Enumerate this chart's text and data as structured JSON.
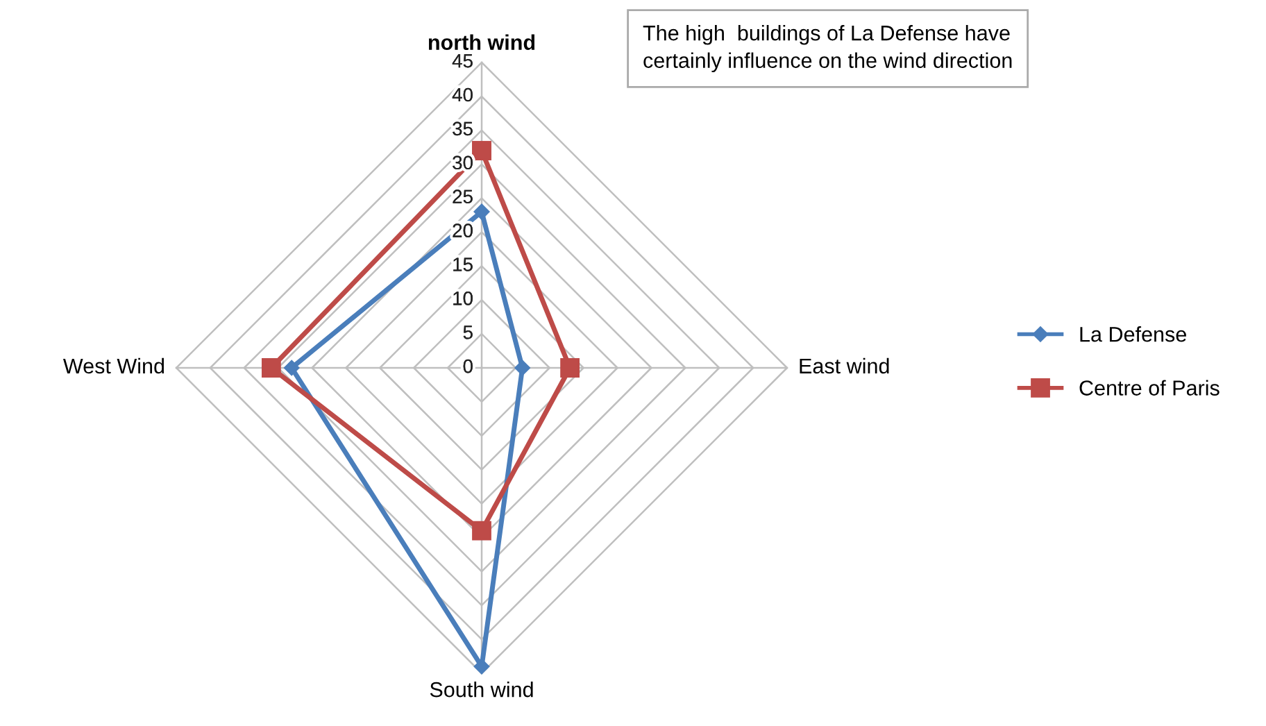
{
  "chart_data": {
    "type": "radar",
    "categories": [
      "north wind",
      "East wind",
      "South wind",
      "West Wind"
    ],
    "ylim": [
      0,
      45
    ],
    "yticks": [
      0,
      5,
      10,
      15,
      20,
      25,
      30,
      35,
      40,
      45
    ],
    "grid": true,
    "legend": "right",
    "line_style": "solid",
    "annotations": [
      "The high  buildings of La Defense have\ncertainly influence on the wind direction"
    ],
    "series": [
      {
        "name": "La Defense",
        "color": "#4a7ebb",
        "marker": "diamond",
        "values": [
          23,
          6,
          44,
          28
        ]
      },
      {
        "name": "Centre of Paris",
        "color": "#be4b48",
        "marker": "square",
        "values": [
          32,
          13,
          24,
          31
        ]
      }
    ]
  }
}
